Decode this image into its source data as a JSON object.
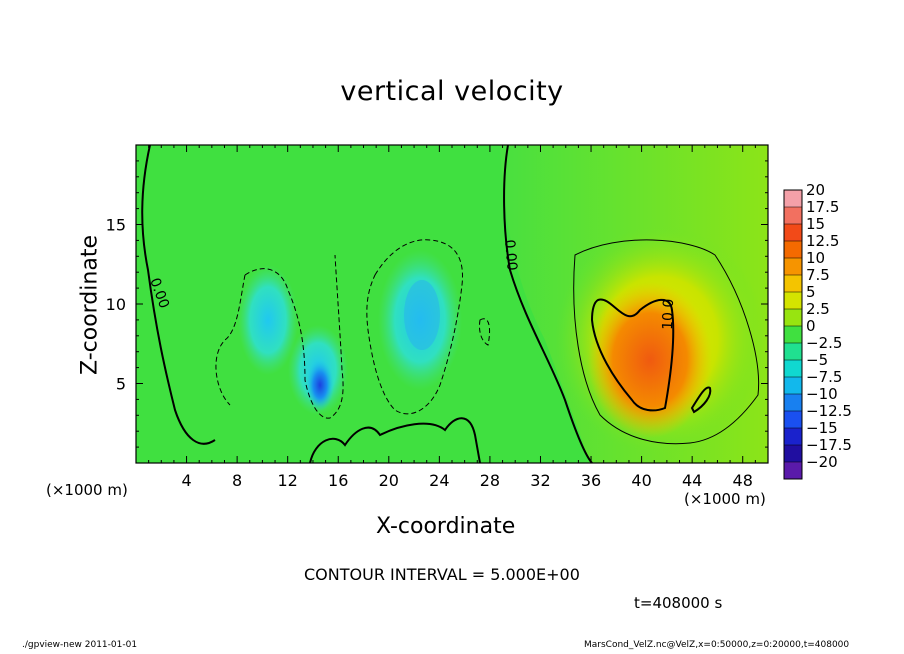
{
  "chart_data": {
    "type": "heatmap",
    "title": "vertical velocity",
    "xlabel": "X-coordinate",
    "ylabel": "Z-coordinate",
    "x_unit_label": "(×1000 m)",
    "xlim": [
      0,
      50
    ],
    "ylim": [
      0,
      20
    ],
    "x_ticks": [
      4,
      8,
      12,
      16,
      20,
      24,
      28,
      32,
      36,
      40,
      44,
      48
    ],
    "y_ticks": [
      5,
      10,
      15
    ],
    "colorbar": {
      "levels": [
        "20",
        "17.5",
        "15",
        "12.5",
        "10",
        "7.5",
        "5",
        "2.5",
        "0",
        "−2.5",
        "−5",
        "−7.5",
        "−10",
        "−12.5",
        "−15",
        "−17.5",
        "−20"
      ],
      "colors": [
        "#f4a0a8",
        "#f27060",
        "#f24a18",
        "#f46a00",
        "#f69400",
        "#f4c400",
        "#d4e400",
        "#98e410",
        "#40e040",
        "#20e090",
        "#10d8d0",
        "#12b8ec",
        "#1880f0",
        "#1a50f0",
        "#1a22cc",
        "#200ea0",
        "#5a1aaa"
      ]
    },
    "contour_labels": [
      "0.00",
      "0.00",
      "10.0"
    ],
    "contour_interval": "CONTOUR INTERVAL = 5.000E+00",
    "features": [
      {
        "name": "updraft-core",
        "x_center": 41,
        "z_center": 6.5,
        "peak": 12.5
      },
      {
        "name": "downdraft-left",
        "x_center": 11,
        "z_center": 8.5,
        "min": -7.5
      },
      {
        "name": "downdraft-mid",
        "x_center": 15,
        "z_center": 5,
        "min": -12.5
      },
      {
        "name": "downdraft-right",
        "x_center": 23,
        "z_center": 9,
        "min": -7.5
      }
    ]
  },
  "annotations": {
    "time": "t=408000 s",
    "footer_left": "./gpview-new   2011-01-01",
    "footer_right": "MarsCond_VelZ.nc@VelZ,x=0:50000,z=0:20000,t=408000"
  }
}
